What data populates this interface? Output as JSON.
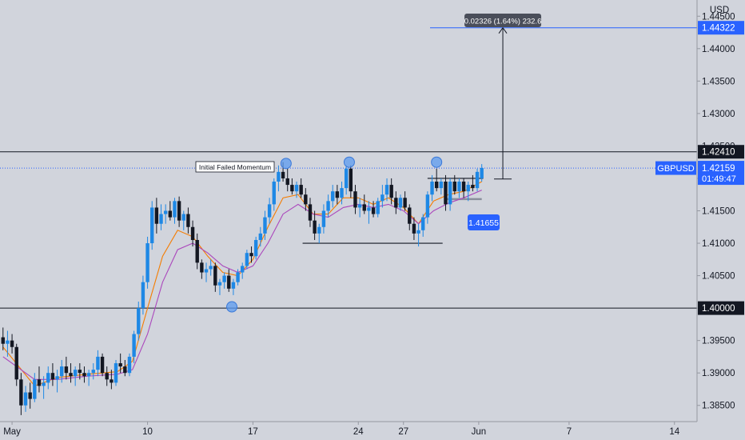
{
  "chart_data": {
    "type": "candlestick",
    "symbol": "GBPUSD",
    "currency": "USD",
    "price_axis": {
      "ylim": [
        1.3825,
        1.4475
      ],
      "ticks": [
        "1.44500",
        "1.44000",
        "1.43500",
        "1.43000",
        "1.42500",
        "1.42000",
        "1.41500",
        "1.41000",
        "1.40500",
        "1.40000",
        "1.39500",
        "1.39000",
        "1.38500"
      ],
      "tick_values": [
        1.445,
        1.44,
        1.435,
        1.43,
        1.425,
        1.42,
        1.415,
        1.41,
        1.405,
        1.4,
        1.395,
        1.39,
        1.385
      ]
    },
    "time_axis": {
      "labels": [
        "May",
        "10",
        "17",
        "24",
        "27",
        "Jun",
        "7",
        "14"
      ],
      "label_days": [
        0,
        9,
        16,
        23,
        26,
        31,
        37,
        44
      ],
      "xlim_days": [
        -0.8,
        45.5
      ]
    },
    "levels": [
      {
        "value": 1.4241,
        "label": "1.42410",
        "color": "#131722"
      },
      {
        "value": 1.4,
        "label": "1.40000",
        "color": "#131722"
      },
      {
        "value": 1.44322,
        "label": "1.44322",
        "color": "#2962ff"
      },
      {
        "value": 1.42159,
        "label": "1.42159",
        "color": "#2962ff"
      }
    ],
    "current_price": {
      "value": 1.42159,
      "symbol": "GBPUSD",
      "countdown": "01:49:47"
    },
    "annotations": {
      "failed_momentum": "Initial Failed Momentum",
      "measure": "0.02326 (1.64%) 232.6",
      "price_tag": "1.41655"
    },
    "ranges": [
      {
        "d1": 19.3,
        "d2": 28.6,
        "value": 1.41
      },
      {
        "d1": 27.6,
        "d2": 31.3,
        "value": 1.42
      },
      {
        "d1": 28.8,
        "d2": 31.2,
        "value": 1.4168
      }
    ],
    "measure_arrow": {
      "day": 32.6,
      "from": 1.4199,
      "to": 1.44322
    },
    "swing_points": [
      {
        "day": 14.6,
        "value": 1.4002
      },
      {
        "day": 18.2,
        "value": 1.4223
      },
      {
        "day": 22.4,
        "value": 1.4225
      },
      {
        "day": 28.2,
        "value": 1.4225
      }
    ],
    "series": [
      {
        "name": "Candles",
        "ohlc": [
          [
            -0.6,
            1.3955,
            1.397,
            1.3935,
            1.3945
          ],
          [
            -0.3,
            1.3945,
            1.3965,
            1.3925,
            1.395
          ],
          [
            0.0,
            1.395,
            1.396,
            1.393,
            1.394
          ],
          [
            0.3,
            1.394,
            1.3945,
            1.388,
            1.389
          ],
          [
            0.6,
            1.389,
            1.39,
            1.3835,
            1.385
          ],
          [
            0.9,
            1.385,
            1.388,
            1.384,
            1.387
          ],
          [
            1.2,
            1.387,
            1.3885,
            1.3845,
            1.386
          ],
          [
            1.5,
            1.386,
            1.39,
            1.3855,
            1.389
          ],
          [
            1.8,
            1.389,
            1.391,
            1.387,
            1.388
          ],
          [
            2.1,
            1.388,
            1.3895,
            1.386,
            1.3885
          ],
          [
            2.4,
            1.3885,
            1.391,
            1.3875,
            1.39
          ],
          [
            2.7,
            1.39,
            1.3915,
            1.388,
            1.389
          ],
          [
            3.0,
            1.389,
            1.3905,
            1.387,
            1.3895
          ],
          [
            3.3,
            1.3895,
            1.392,
            1.3885,
            1.391
          ],
          [
            3.6,
            1.391,
            1.3925,
            1.389,
            1.39
          ],
          [
            3.9,
            1.39,
            1.3915,
            1.3885,
            1.3895
          ],
          [
            4.2,
            1.3895,
            1.391,
            1.388,
            1.3905
          ],
          [
            4.5,
            1.3905,
            1.3915,
            1.389,
            1.39
          ],
          [
            4.8,
            1.39,
            1.391,
            1.3885,
            1.3895
          ],
          [
            5.1,
            1.3895,
            1.3905,
            1.388,
            1.39
          ],
          [
            5.4,
            1.39,
            1.3915,
            1.389,
            1.3905
          ],
          [
            5.7,
            1.3905,
            1.3935,
            1.3895,
            1.3925
          ],
          [
            6.0,
            1.3925,
            1.393,
            1.3895,
            1.39
          ],
          [
            6.3,
            1.39,
            1.391,
            1.388,
            1.389
          ],
          [
            6.6,
            1.389,
            1.3905,
            1.3875,
            1.3885
          ],
          [
            6.9,
            1.3885,
            1.392,
            1.388,
            1.3915
          ],
          [
            7.2,
            1.3915,
            1.393,
            1.39,
            1.391
          ],
          [
            7.5,
            1.391,
            1.392,
            1.3895,
            1.39
          ],
          [
            7.8,
            1.39,
            1.393,
            1.3895,
            1.3925
          ],
          [
            8.1,
            1.3925,
            1.3965,
            1.3915,
            1.396
          ],
          [
            8.4,
            1.396,
            1.401,
            1.395,
            1.4
          ],
          [
            8.7,
            1.4,
            1.405,
            1.399,
            1.404
          ],
          [
            9.0,
            1.404,
            1.411,
            1.403,
            1.41
          ],
          [
            9.3,
            1.41,
            1.4165,
            1.409,
            1.4155
          ],
          [
            9.6,
            1.4155,
            1.417,
            1.4115,
            1.413
          ],
          [
            9.9,
            1.413,
            1.416,
            1.412,
            1.4145
          ],
          [
            10.2,
            1.4145,
            1.416,
            1.413,
            1.415
          ],
          [
            10.5,
            1.415,
            1.4165,
            1.4135,
            1.414
          ],
          [
            10.8,
            1.414,
            1.417,
            1.413,
            1.4165
          ],
          [
            11.1,
            1.4165,
            1.4172,
            1.4125,
            1.4135
          ],
          [
            11.4,
            1.4135,
            1.415,
            1.412,
            1.4145
          ],
          [
            11.7,
            1.4145,
            1.4155,
            1.4115,
            1.4125
          ],
          [
            12.0,
            1.4125,
            1.4135,
            1.4095,
            1.4105
          ],
          [
            12.3,
            1.4105,
            1.4115,
            1.406,
            1.407
          ],
          [
            12.6,
            1.407,
            1.4075,
            1.4045,
            1.4055
          ],
          [
            12.9,
            1.4055,
            1.407,
            1.404,
            1.406
          ],
          [
            13.2,
            1.406,
            1.4075,
            1.405,
            1.4065
          ],
          [
            13.5,
            1.4065,
            1.407,
            1.4025,
            1.4035
          ],
          [
            13.8,
            1.4035,
            1.4045,
            1.402,
            1.404
          ],
          [
            14.1,
            1.404,
            1.4055,
            1.403,
            1.405
          ],
          [
            14.4,
            1.405,
            1.406,
            1.4025,
            1.403
          ],
          [
            14.7,
            1.403,
            1.4045,
            1.402,
            1.404
          ],
          [
            15.0,
            1.404,
            1.406,
            1.4035,
            1.4055
          ],
          [
            15.3,
            1.4055,
            1.407,
            1.4045,
            1.4065
          ],
          [
            15.6,
            1.4065,
            1.409,
            1.406,
            1.4085
          ],
          [
            15.9,
            1.4085,
            1.4095,
            1.407,
            1.408
          ],
          [
            16.2,
            1.408,
            1.411,
            1.4075,
            1.4105
          ],
          [
            16.5,
            1.4105,
            1.4125,
            1.4095,
            1.4115
          ],
          [
            16.8,
            1.4115,
            1.415,
            1.4105,
            1.414
          ],
          [
            17.1,
            1.414,
            1.417,
            1.413,
            1.416
          ],
          [
            17.4,
            1.416,
            1.42,
            1.415,
            1.4195
          ],
          [
            17.7,
            1.4195,
            1.422,
            1.418,
            1.421
          ],
          [
            18.0,
            1.421,
            1.4225,
            1.4195,
            1.42
          ],
          [
            18.3,
            1.42,
            1.4215,
            1.418,
            1.419
          ],
          [
            18.6,
            1.419,
            1.42,
            1.4175,
            1.418
          ],
          [
            18.9,
            1.418,
            1.4195,
            1.417,
            1.419
          ],
          [
            19.2,
            1.419,
            1.42,
            1.417,
            1.4175
          ],
          [
            19.5,
            1.4175,
            1.4185,
            1.415,
            1.416
          ],
          [
            19.8,
            1.416,
            1.417,
            1.4125,
            1.4135
          ],
          [
            20.1,
            1.4135,
            1.415,
            1.4105,
            1.4115
          ],
          [
            20.4,
            1.4115,
            1.413,
            1.41,
            1.4125
          ],
          [
            20.7,
            1.4125,
            1.416,
            1.4115,
            1.415
          ],
          [
            21.0,
            1.415,
            1.4175,
            1.414,
            1.4165
          ],
          [
            21.3,
            1.4165,
            1.419,
            1.4155,
            1.418
          ],
          [
            21.6,
            1.418,
            1.419,
            1.416,
            1.417
          ],
          [
            21.9,
            1.417,
            1.4195,
            1.416,
            1.4185
          ],
          [
            22.2,
            1.4185,
            1.422,
            1.4175,
            1.4215
          ],
          [
            22.5,
            1.4215,
            1.422,
            1.417,
            1.418
          ],
          [
            22.8,
            1.418,
            1.419,
            1.4145,
            1.4155
          ],
          [
            23.1,
            1.4155,
            1.417,
            1.414,
            1.416
          ],
          [
            23.4,
            1.416,
            1.4175,
            1.4145,
            1.415
          ],
          [
            23.7,
            1.415,
            1.4165,
            1.413,
            1.4155
          ],
          [
            24.0,
            1.4155,
            1.4165,
            1.414,
            1.4145
          ],
          [
            24.3,
            1.4145,
            1.417,
            1.414,
            1.4165
          ],
          [
            24.6,
            1.4165,
            1.419,
            1.4155,
            1.4175
          ],
          [
            24.9,
            1.4175,
            1.42,
            1.4165,
            1.419
          ],
          [
            25.2,
            1.419,
            1.42,
            1.416,
            1.417
          ],
          [
            25.5,
            1.417,
            1.418,
            1.4145,
            1.4155
          ],
          [
            25.8,
            1.4155,
            1.4175,
            1.415,
            1.417
          ],
          [
            26.1,
            1.417,
            1.418,
            1.415,
            1.4155
          ],
          [
            26.4,
            1.4155,
            1.416,
            1.412,
            1.413
          ],
          [
            26.7,
            1.413,
            1.414,
            1.4105,
            1.4115
          ],
          [
            27.0,
            1.4115,
            1.413,
            1.4095,
            1.412
          ],
          [
            27.3,
            1.412,
            1.4145,
            1.411,
            1.414
          ],
          [
            27.6,
            1.414,
            1.418,
            1.413,
            1.4175
          ],
          [
            27.9,
            1.4175,
            1.4205,
            1.4165,
            1.4195
          ],
          [
            28.2,
            1.4195,
            1.4215,
            1.418,
            1.4185
          ],
          [
            28.5,
            1.4185,
            1.42,
            1.4175,
            1.4195
          ],
          [
            28.8,
            1.4195,
            1.4205,
            1.415,
            1.416
          ],
          [
            29.1,
            1.416,
            1.42,
            1.415,
            1.4195
          ],
          [
            29.4,
            1.4195,
            1.4205,
            1.4175,
            1.418
          ],
          [
            29.7,
            1.418,
            1.42,
            1.417,
            1.4195
          ],
          [
            30.0,
            1.4195,
            1.42,
            1.417,
            1.418
          ],
          [
            30.3,
            1.418,
            1.4195,
            1.4165,
            1.419
          ],
          [
            30.6,
            1.419,
            1.4205,
            1.418,
            1.4185
          ],
          [
            30.9,
            1.4185,
            1.4215,
            1.418,
            1.421
          ],
          [
            31.2,
            1.42,
            1.4222,
            1.4195,
            1.4216
          ]
        ]
      },
      {
        "name": "EMA fast",
        "color": "#f57c00",
        "points": [
          [
            -0.6,
            1.394
          ],
          [
            1.5,
            1.388
          ],
          [
            3.0,
            1.3893
          ],
          [
            5.0,
            1.3898
          ],
          [
            7.0,
            1.3902
          ],
          [
            8.0,
            1.3918
          ],
          [
            9.0,
            1.4
          ],
          [
            10.0,
            1.408
          ],
          [
            11.0,
            1.412
          ],
          [
            12.0,
            1.411
          ],
          [
            13.0,
            1.408
          ],
          [
            14.0,
            1.4055
          ],
          [
            15.0,
            1.405
          ],
          [
            16.0,
            1.4075
          ],
          [
            17.0,
            1.4125
          ],
          [
            18.0,
            1.417
          ],
          [
            19.0,
            1.4175
          ],
          [
            20.0,
            1.4145
          ],
          [
            21.0,
            1.4145
          ],
          [
            22.0,
            1.417
          ],
          [
            23.0,
            1.417
          ],
          [
            24.0,
            1.416
          ],
          [
            25.0,
            1.417
          ],
          [
            26.0,
            1.4155
          ],
          [
            27.0,
            1.413
          ],
          [
            28.0,
            1.4165
          ],
          [
            29.0,
            1.4175
          ],
          [
            30.0,
            1.418
          ],
          [
            31.2,
            1.4195
          ]
        ]
      },
      {
        "name": "EMA slow",
        "color": "#ab47bc",
        "points": [
          [
            -0.6,
            1.3925
          ],
          [
            1.5,
            1.389
          ],
          [
            3.0,
            1.389
          ],
          [
            5.0,
            1.3895
          ],
          [
            7.0,
            1.3898
          ],
          [
            8.0,
            1.3905
          ],
          [
            9.0,
            1.396
          ],
          [
            10.0,
            1.404
          ],
          [
            11.0,
            1.409
          ],
          [
            12.0,
            1.41
          ],
          [
            13.0,
            1.4085
          ],
          [
            14.0,
            1.4065
          ],
          [
            15.0,
            1.4055
          ],
          [
            16.0,
            1.4065
          ],
          [
            17.0,
            1.41
          ],
          [
            18.0,
            1.4145
          ],
          [
            19.0,
            1.416
          ],
          [
            20.0,
            1.4145
          ],
          [
            21.0,
            1.414
          ],
          [
            22.0,
            1.4155
          ],
          [
            23.0,
            1.416
          ],
          [
            24.0,
            1.4155
          ],
          [
            25.0,
            1.416
          ],
          [
            26.0,
            1.415
          ],
          [
            27.0,
            1.413
          ],
          [
            28.0,
            1.415
          ],
          [
            29.0,
            1.4162
          ],
          [
            30.0,
            1.417
          ],
          [
            31.2,
            1.4182
          ]
        ]
      }
    ]
  }
}
